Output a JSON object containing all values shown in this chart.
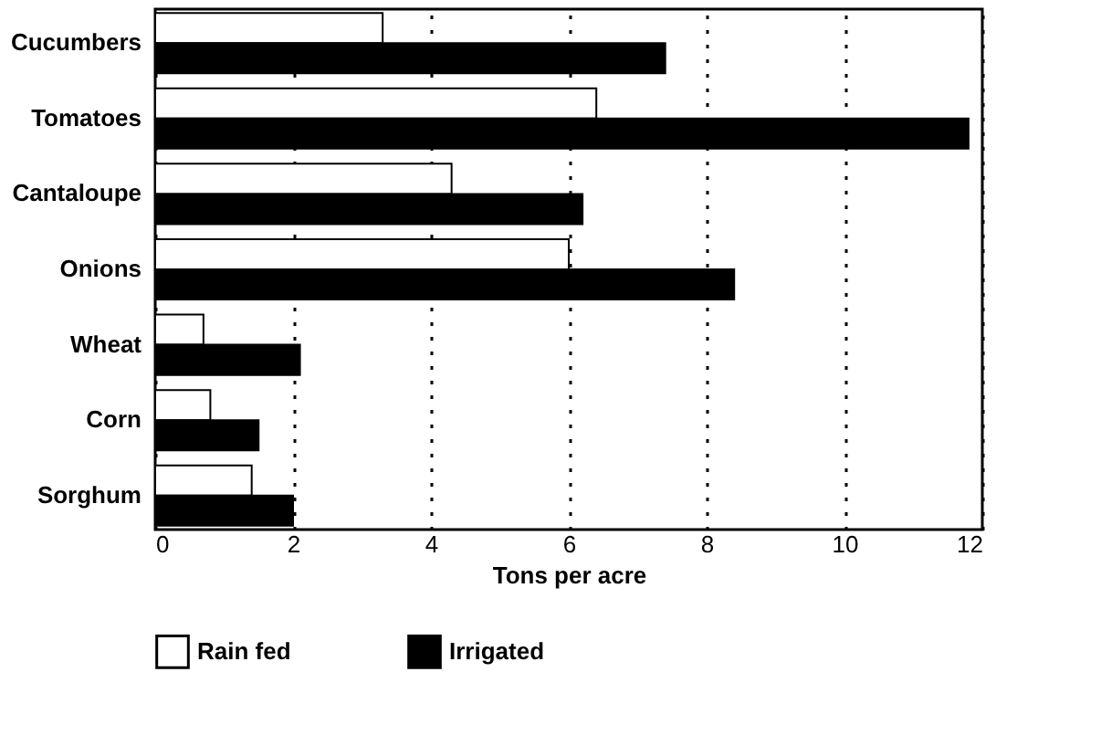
{
  "chart_data": {
    "type": "bar",
    "orientation": "horizontal",
    "xlabel": "Tons per acre",
    "categories": [
      "Cucumbers",
      "Tomatoes",
      "Cantaloupe",
      "Onions",
      "Wheat",
      "Corn",
      "Sorghum"
    ],
    "series": [
      {
        "name": "Rain fed",
        "color": "#ffffff",
        "values": [
          3.3,
          6.4,
          4.3,
          6.0,
          0.7,
          0.8,
          1.4
        ]
      },
      {
        "name": "Irrigated",
        "color": "#000000",
        "values": [
          7.4,
          11.8,
          6.2,
          8.4,
          2.1,
          1.5,
          2.0
        ]
      }
    ],
    "xlim": [
      0,
      12
    ],
    "xticks": [
      0,
      2,
      4,
      6,
      8,
      10,
      12
    ],
    "grid": "x",
    "legend": "bottom"
  }
}
